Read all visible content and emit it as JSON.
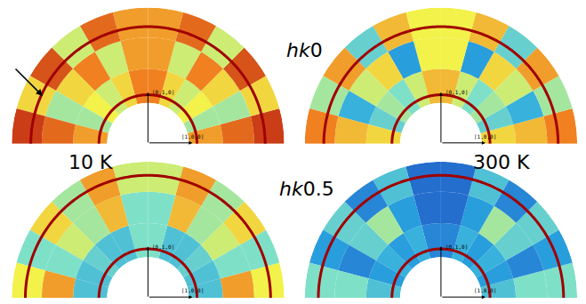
{
  "chart_data": {
    "type": "polar_heatmap",
    "row_labels": [
      "hk0",
      "hk0.5"
    ],
    "column_labels": [
      "10 K",
      "300 K"
    ],
    "axis_labels": [
      "[0,1,0]",
      "[1,0,0]"
    ],
    "rlim": [
      0.3,
      1
    ],
    "r_bins": [
      0.3,
      0.55,
      0.78,
      1.0
    ],
    "theta_bins": [
      0,
      15,
      30,
      45,
      60,
      75,
      90,
      105,
      120,
      135,
      150,
      165,
      180
    ],
    "zlim": [
      0,
      1
    ],
    "panels": [
      {
        "row": 0,
        "column": 0,
        "cells": [
          [
            0.7,
            0.45,
            0.55,
            0.5,
            0.6,
            0.75,
            0.75,
            0.6,
            0.5,
            0.55,
            0.45,
            0.7
          ],
          [
            0.8,
            0.45,
            0.6,
            0.75,
            0.5,
            0.7,
            0.7,
            0.5,
            0.75,
            0.6,
            0.45,
            0.8
          ],
          [
            0.9,
            0.6,
            0.85,
            0.5,
            0.8,
            0.7,
            0.7,
            0.8,
            0.5,
            0.85,
            0.6,
            0.9
          ]
        ],
        "rings": [
          0.36,
          0.86
        ]
      },
      {
        "row": 0,
        "column": 1,
        "cells": [
          [
            0.6,
            0.35,
            0.45,
            0.4,
            0.5,
            0.65,
            0.65,
            0.5,
            0.4,
            0.45,
            0.35,
            0.6
          ],
          [
            0.65,
            0.25,
            0.5,
            0.6,
            0.2,
            0.55,
            0.55,
            0.2,
            0.6,
            0.5,
            0.25,
            0.65
          ],
          [
            0.75,
            0.45,
            0.7,
            0.35,
            0.65,
            0.55,
            0.55,
            0.65,
            0.35,
            0.7,
            0.45,
            0.75
          ]
        ],
        "rings": [
          0.36,
          0.86
        ]
      },
      {
        "row": 1,
        "column": 0,
        "cells": [
          [
            0.3,
            0.3,
            0.35,
            0.3,
            0.3,
            0.4,
            0.4,
            0.3,
            0.3,
            0.35,
            0.3,
            0.3
          ],
          [
            0.7,
            0.4,
            0.5,
            0.45,
            0.65,
            0.4,
            0.4,
            0.65,
            0.45,
            0.5,
            0.4,
            0.7
          ],
          [
            0.55,
            0.4,
            0.6,
            0.45,
            0.7,
            0.5,
            0.5,
            0.7,
            0.45,
            0.6,
            0.4,
            0.55
          ]
        ],
        "rings": [
          0.36,
          0.9
        ]
      },
      {
        "row": 1,
        "column": 1,
        "cells": [
          [
            0.3,
            0.2,
            0.25,
            0.2,
            0.25,
            0.15,
            0.15,
            0.25,
            0.2,
            0.25,
            0.2,
            0.3
          ],
          [
            0.4,
            0.15,
            0.35,
            0.45,
            0.2,
            0.1,
            0.1,
            0.2,
            0.45,
            0.35,
            0.15,
            0.4
          ],
          [
            0.4,
            0.2,
            0.35,
            0.15,
            0.3,
            0.1,
            0.1,
            0.3,
            0.15,
            0.35,
            0.2,
            0.4
          ]
        ],
        "rings": [
          0.36,
          0.9
        ]
      }
    ]
  }
}
